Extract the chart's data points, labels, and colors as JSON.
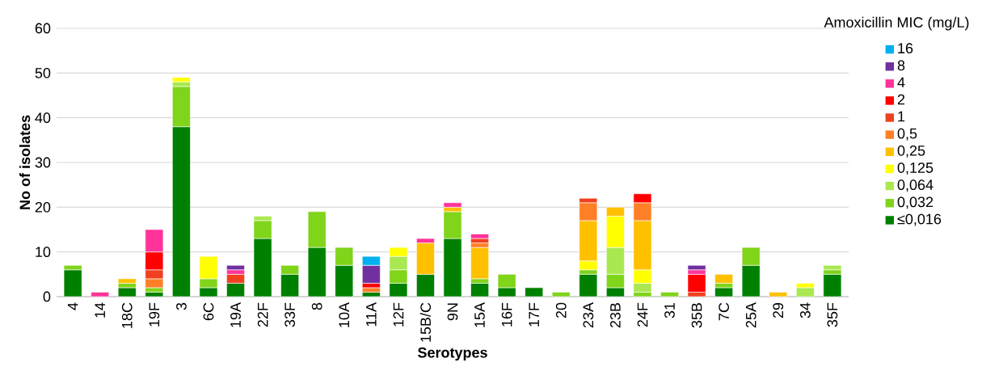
{
  "chart_data": {
    "type": "bar",
    "stacked": true,
    "xlabel": "Serotypes",
    "ylabel": "No of isolates",
    "legend_title": "Amoxicillin MIC (mg/L)",
    "legend": "right",
    "grid": "y",
    "categories": [
      "4",
      "14",
      "18C",
      "19F",
      "3",
      "6C",
      "19A",
      "22F",
      "33F",
      "8",
      "10A",
      "11A",
      "12F",
      "15B/C",
      "9N",
      "15A",
      "16F",
      "17F",
      "20",
      "23A",
      "23B",
      "24F",
      "31",
      "35B",
      "7C",
      "25A",
      "29",
      "34",
      "35F"
    ],
    "ylim": [
      0,
      60
    ],
    "yticks": [
      0,
      10,
      20,
      30,
      40,
      50,
      60
    ],
    "series": [
      {
        "name": "≤0,016",
        "color": "#008000",
        "values": [
          6,
          null,
          2,
          1,
          38,
          2,
          3,
          13,
          5,
          11,
          7,
          1,
          3,
          5,
          13,
          3,
          2,
          2,
          null,
          5,
          2,
          null,
          null,
          null,
          2,
          7,
          null,
          null,
          5
        ]
      },
      {
        "name": "0,032",
        "color": "#80d41a",
        "values": [
          1,
          null,
          1,
          1,
          9,
          2,
          null,
          4,
          2,
          8,
          4,
          null,
          3,
          null,
          6,
          1,
          3,
          null,
          1,
          1,
          3,
          1,
          1,
          null,
          1,
          4,
          null,
          null,
          1
        ]
      },
      {
        "name": "0,064",
        "color": "#a9e850",
        "values": [
          null,
          null,
          null,
          null,
          1,
          null,
          null,
          1,
          null,
          null,
          null,
          null,
          3,
          null,
          null,
          null,
          null,
          null,
          null,
          null,
          6,
          2,
          null,
          null,
          null,
          null,
          null,
          2,
          1
        ]
      },
      {
        "name": "0,125",
        "color": "#ffff00",
        "values": [
          null,
          null,
          null,
          null,
          1,
          5,
          null,
          null,
          null,
          null,
          null,
          null,
          2,
          null,
          null,
          null,
          null,
          null,
          null,
          2,
          7,
          3,
          null,
          null,
          null,
          null,
          null,
          1,
          null
        ]
      },
      {
        "name": "0,25",
        "color": "#ffc000",
        "values": [
          null,
          null,
          1,
          null,
          null,
          null,
          null,
          null,
          null,
          null,
          null,
          null,
          null,
          7,
          1,
          7,
          null,
          null,
          null,
          9,
          2,
          11,
          null,
          null,
          2,
          null,
          1,
          null,
          null
        ]
      },
      {
        "name": "0,5",
        "color": "#ff7f27",
        "values": [
          null,
          null,
          null,
          2,
          null,
          null,
          null,
          null,
          null,
          null,
          null,
          1,
          null,
          null,
          null,
          1,
          null,
          null,
          null,
          4,
          null,
          4,
          null,
          null,
          null,
          null,
          null,
          null,
          null
        ]
      },
      {
        "name": "1",
        "color": "#f04020",
        "values": [
          null,
          null,
          null,
          2,
          null,
          null,
          2,
          null,
          null,
          null,
          null,
          null,
          null,
          null,
          null,
          1,
          null,
          null,
          null,
          1,
          null,
          null,
          null,
          1,
          null,
          null,
          null,
          null,
          null
        ]
      },
      {
        "name": "2",
        "color": "#ff0000",
        "values": [
          null,
          null,
          null,
          4,
          null,
          null,
          null,
          null,
          null,
          null,
          null,
          1,
          null,
          null,
          null,
          null,
          null,
          null,
          null,
          null,
          null,
          2,
          null,
          4,
          null,
          null,
          null,
          null,
          null
        ]
      },
      {
        "name": "4",
        "color": "#ff3399",
        "values": [
          null,
          1,
          null,
          5,
          null,
          null,
          1,
          null,
          null,
          null,
          null,
          null,
          null,
          1,
          1,
          1,
          null,
          null,
          null,
          null,
          null,
          null,
          null,
          1,
          null,
          null,
          null,
          null,
          null
        ]
      },
      {
        "name": "8",
        "color": "#7030a0",
        "values": [
          null,
          null,
          null,
          null,
          null,
          null,
          1,
          null,
          null,
          null,
          null,
          4,
          null,
          null,
          null,
          null,
          null,
          null,
          null,
          null,
          null,
          null,
          null,
          1,
          null,
          null,
          null,
          null,
          null
        ]
      },
      {
        "name": "16",
        "color": "#00b0f0",
        "values": [
          null,
          null,
          null,
          null,
          null,
          null,
          null,
          null,
          null,
          null,
          null,
          2,
          null,
          null,
          null,
          null,
          null,
          null,
          null,
          null,
          null,
          null,
          null,
          null,
          null,
          null,
          null,
          null,
          null
        ]
      }
    ]
  }
}
